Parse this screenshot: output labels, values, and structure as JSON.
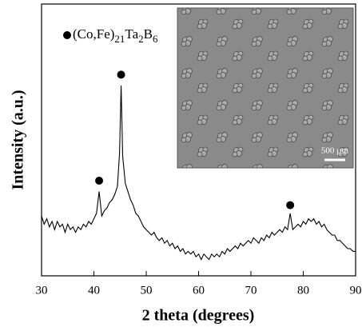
{
  "chart_data": {
    "type": "line",
    "legend_text": [
      "(Co,Fe)",
      "21",
      "Ta",
      "2",
      "B",
      "6"
    ],
    "xlabel": "2 theta (degrees)",
    "ylabel": "Intensity (a.u.)",
    "inset_scale_label": "500 µm",
    "xlim": [
      30,
      90
    ],
    "xticks": [
      30,
      40,
      50,
      60,
      70,
      80,
      90
    ],
    "ylim": [
      0,
      100
    ],
    "color": "#000000",
    "x": [
      30,
      30.5,
      31,
      31.5,
      32,
      32.5,
      33,
      33.5,
      34,
      34.5,
      35,
      35.5,
      36,
      36.5,
      37,
      37.5,
      38,
      38.5,
      39,
      39.5,
      40,
      40.5,
      41,
      41.5,
      42,
      42.5,
      43,
      43.5,
      44,
      44.5,
      44.9,
      45.2,
      45.5,
      46,
      46.5,
      47,
      47.5,
      48,
      48.5,
      49,
      49.5,
      50,
      50.5,
      51,
      51.5,
      52,
      52.5,
      53,
      53.5,
      54,
      54.5,
      55,
      55.5,
      56,
      56.5,
      57,
      57.5,
      58,
      58.5,
      59,
      59.5,
      60,
      60.5,
      61,
      61.5,
      62,
      62.5,
      63,
      63.5,
      64,
      64.5,
      65,
      65.5,
      66,
      66.5,
      67,
      67.5,
      68,
      68.5,
      69,
      69.5,
      70,
      70.5,
      71,
      71.5,
      72,
      72.5,
      73,
      73.5,
      74,
      74.5,
      75,
      75.5,
      76,
      76.5,
      77,
      77.5,
      78,
      78.5,
      79,
      79.5,
      80,
      80.5,
      81,
      81.5,
      82,
      82.5,
      83,
      83.5,
      84,
      84.5,
      85,
      85.5,
      86,
      86.5,
      87,
      87.5,
      88,
      88.5,
      89,
      89.5,
      90
    ],
    "values": [
      22,
      19,
      21,
      18,
      20,
      17,
      20,
      18,
      19,
      16,
      19,
      17,
      18,
      16,
      18,
      17,
      19,
      18,
      20,
      19,
      21,
      23,
      31,
      22,
      24,
      25,
      27,
      28,
      30,
      33,
      45,
      70,
      44,
      34,
      31,
      28,
      26,
      23,
      22,
      20,
      18,
      17,
      16,
      15,
      16,
      14,
      13,
      14,
      12,
      13,
      11,
      12,
      10,
      11,
      9,
      10,
      8,
      9,
      8,
      9,
      7,
      8,
      6,
      8,
      7,
      6,
      8,
      7,
      8,
      7,
      9,
      8,
      10,
      9,
      10,
      11,
      10,
      12,
      11,
      12,
      13,
      12,
      14,
      13,
      12,
      14,
      13,
      15,
      14,
      16,
      15,
      16,
      17,
      16,
      18,
      17,
      23,
      17,
      18,
      19,
      18,
      20,
      19,
      21,
      20,
      21,
      19,
      20,
      18,
      19,
      17,
      16,
      15,
      15,
      13,
      13,
      12,
      11,
      10,
      10,
      9,
      9
    ],
    "peak_markers": {
      "x": [
        41,
        45.2,
        77.5
      ],
      "values": [
        35,
        74,
        26
      ]
    }
  }
}
